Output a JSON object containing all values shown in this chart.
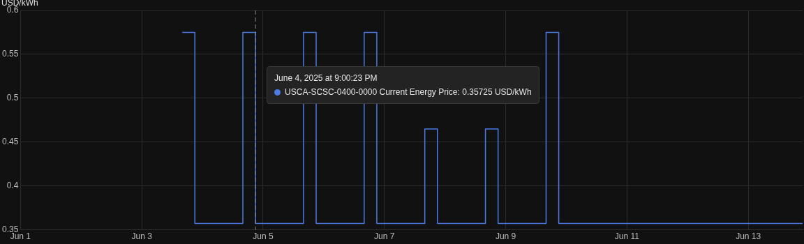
{
  "chart_data": {
    "type": "step",
    "ylabel": "USD/kWh",
    "x": [
      "2025-06-03T16:00",
      "2025-06-03T21:00",
      "2025-06-04T16:00",
      "2025-06-04T21:00",
      "2025-06-05T16:00",
      "2025-06-05T21:00",
      "2025-06-06T16:00",
      "2025-06-06T21:00",
      "2025-06-07T16:00",
      "2025-06-07T21:00",
      "2025-06-08T16:00",
      "2025-06-08T21:00",
      "2025-06-09T16:00",
      "2025-06-09T21:00",
      "2025-06-13T21:30"
    ],
    "series": [
      {
        "color": "#4b7be5",
        "values": [
          0.575,
          0.35725,
          0.575,
          0.35725,
          0.575,
          0.35725,
          0.575,
          0.35725,
          0.465,
          0.35725,
          0.465,
          0.35725,
          0.575,
          0.35725,
          0.35725
        ]
      }
    ],
    "xlim": [
      "2025-06-01",
      "2025-06-13T21:30"
    ],
    "xticks": [
      {
        "value": "2025-06-01",
        "label": "Jun 1"
      },
      {
        "value": "2025-06-03",
        "label": "Jun 3"
      },
      {
        "value": "2025-06-05",
        "label": "Jun 5"
      },
      {
        "value": "2025-06-07",
        "label": "Jun 7"
      },
      {
        "value": "2025-06-09",
        "label": "Jun 9"
      },
      {
        "value": "2025-06-11",
        "label": "Jun 11"
      },
      {
        "value": "2025-06-13",
        "label": "Jun 13"
      }
    ],
    "ylim": [
      0.35,
      0.6
    ],
    "yticks": [
      0.35,
      0.4,
      0.45,
      0.5,
      0.55,
      0.6
    ],
    "ref_lines": [
      {
        "axis": "x",
        "value": "2025-06-04T21:00:23",
        "label": null,
        "color": "#888888",
        "line_style": "dashed"
      }
    ],
    "annotations": [
      "June 4, 2025 at 9:00:23 PM\nUSCA-SCSC-0400-0000 Current Energy Price: 0.35725 USD/kWh"
    ],
    "grid": true,
    "legend": false,
    "marker": "none",
    "line_style": "solid"
  }
}
